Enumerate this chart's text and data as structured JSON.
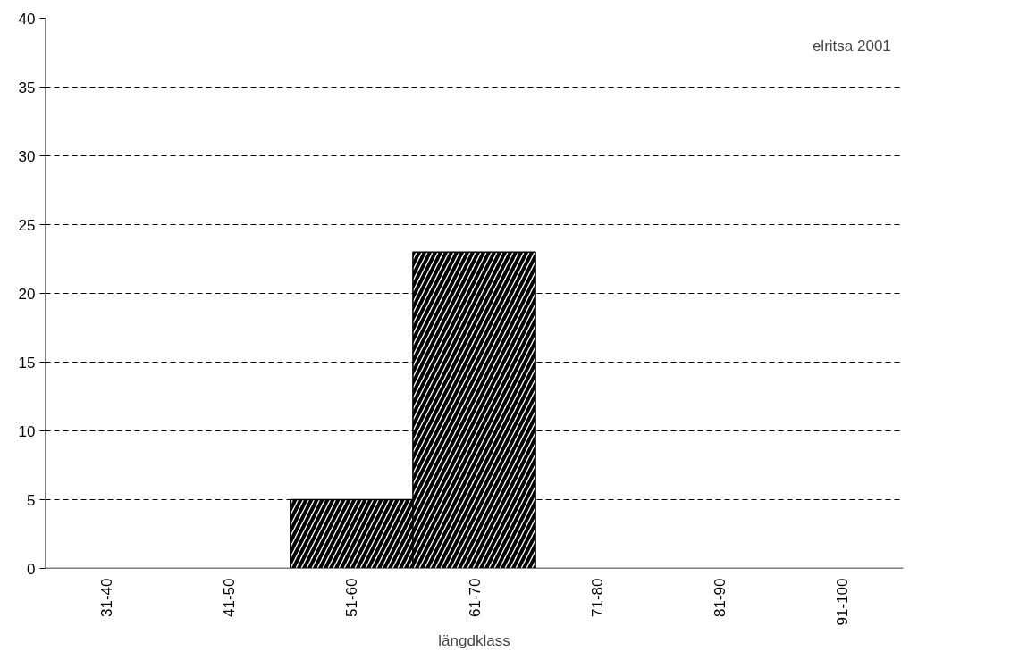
{
  "chart_data": {
    "type": "bar",
    "xlabel": "längdklass",
    "categories": [
      "31-40",
      "41-50",
      "51-60",
      "61-70",
      "71-80",
      "81-90",
      "91-100"
    ],
    "values": [
      0,
      0,
      5,
      23,
      0,
      0,
      0
    ],
    "color": "#000000",
    "ylim": [
      0,
      40
    ],
    "yticks": [
      0,
      5,
      10,
      15,
      20,
      25,
      30,
      35,
      40
    ],
    "grid": "y",
    "annotations": [
      "elritsa 2001"
    ]
  }
}
